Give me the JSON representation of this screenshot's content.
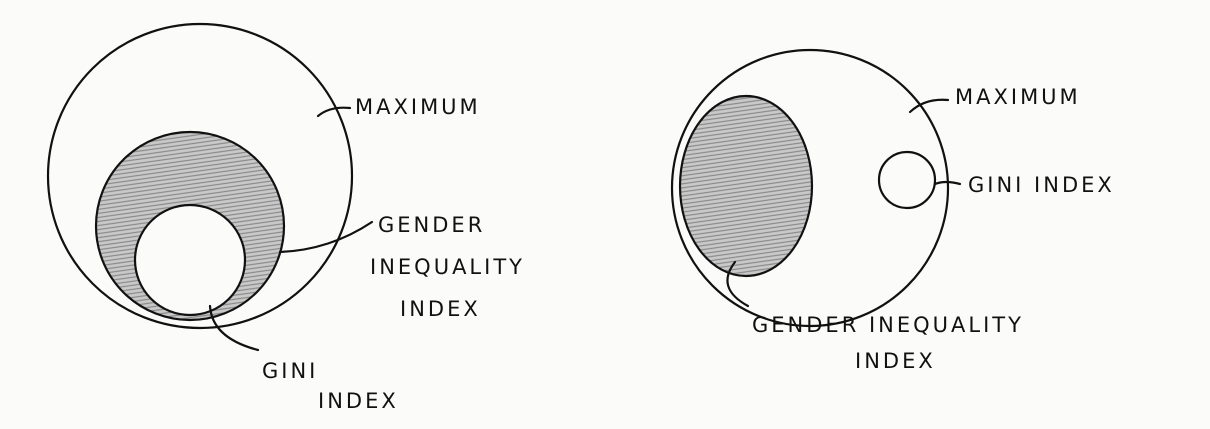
{
  "diagrams": [
    {
      "maximum": [
        "MAXIMUM"
      ],
      "gender_inequality": [
        "GENDER",
        "INEQUALITY",
        "INDEX"
      ],
      "gini": [
        "GINI",
        "INDEX"
      ]
    },
    {
      "maximum": [
        "MAXIMUM"
      ],
      "gini": [
        "GINI INDEX"
      ],
      "gender_inequality": [
        "GENDER INEQUALITY",
        "INDEX"
      ]
    }
  ]
}
